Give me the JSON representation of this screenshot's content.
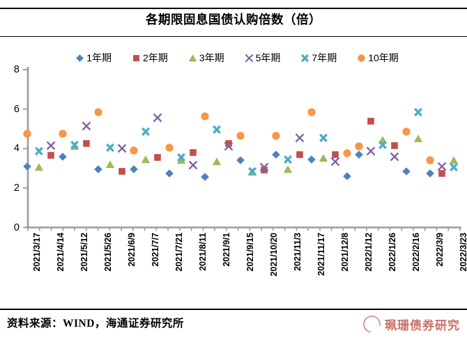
{
  "chart_data": {
    "type": "scatter",
    "title": "各期限固息国债认购倍数（倍）",
    "legend_position": "top",
    "grid": false,
    "x_axis": {
      "labels": [
        "2021/3/17",
        "2021/4/14",
        "2021/5/12",
        "2021/5/26",
        "2021/6/9",
        "2021/7/7",
        "2021/7/21",
        "2021/8/11",
        "2021/9/1",
        "2021/9/15",
        "2021/10/20",
        "2021/11/3",
        "2021/11/17",
        "2021/12/8",
        "2022/1/12",
        "2022/1/26",
        "2022/2/16",
        "2022/3/9",
        "2022/3/23"
      ],
      "total_slots": 37,
      "note_slots": "data points sit on 37 half-interval slots; axis labels mark odd slots 1,3,...,37"
    },
    "y_axis": {
      "min": 0,
      "max": 8,
      "tick_labels": [
        "0",
        "2",
        "4",
        "6",
        "8"
      ]
    },
    "series": [
      {
        "name": "1年期",
        "marker": "diamond",
        "color": "#4F81BD",
        "points": [
          [
            1,
            3.1
          ],
          [
            4,
            3.6
          ],
          [
            7,
            2.95
          ],
          [
            10,
            2.95
          ],
          [
            13,
            2.75
          ],
          [
            16,
            2.55
          ],
          [
            19,
            3.4
          ],
          [
            22,
            3.7
          ],
          [
            25,
            3.45
          ],
          [
            28,
            2.6
          ],
          [
            29,
            3.7
          ],
          [
            33,
            2.85
          ],
          [
            35,
            2.75
          ]
        ]
      },
      {
        "name": "2年期",
        "marker": "square",
        "color": "#C0504D",
        "points": [
          [
            3,
            3.65
          ],
          [
            6,
            4.25
          ],
          [
            9,
            2.85
          ],
          [
            12,
            3.55
          ],
          [
            15,
            3.8
          ],
          [
            18,
            4.25
          ],
          [
            21,
            2.9
          ],
          [
            24,
            3.7
          ],
          [
            27,
            3.7
          ],
          [
            30,
            5.4
          ],
          [
            32,
            4.15
          ],
          [
            36,
            2.75
          ]
        ]
      },
      {
        "name": "3年期",
        "marker": "triangle",
        "color": "#9BBB59",
        "points": [
          [
            2,
            3.05
          ],
          [
            5,
            4.1
          ],
          [
            8,
            3.2
          ],
          [
            11,
            3.45
          ],
          [
            14,
            3.4
          ],
          [
            17,
            3.35
          ],
          [
            20,
            2.8
          ],
          [
            23,
            2.95
          ],
          [
            26,
            3.5
          ],
          [
            31,
            4.45
          ],
          [
            34,
            4.5
          ],
          [
            37,
            3.4
          ]
        ]
      },
      {
        "name": "5年期",
        "marker": "x-thin",
        "color": "#8064A2",
        "points": [
          [
            3,
            4.15
          ],
          [
            6,
            5.15
          ],
          [
            9,
            4.0
          ],
          [
            12,
            5.55
          ],
          [
            15,
            3.15
          ],
          [
            18,
            4.1
          ],
          [
            21,
            3.05
          ],
          [
            24,
            4.55
          ],
          [
            27,
            3.35
          ],
          [
            30,
            3.85
          ],
          [
            32,
            3.6
          ],
          [
            36,
            3.1
          ]
        ]
      },
      {
        "name": "7年期",
        "marker": "x-bold",
        "color": "#4BACC6",
        "points": [
          [
            2,
            3.85
          ],
          [
            5,
            4.2
          ],
          [
            8,
            4.05
          ],
          [
            11,
            4.85
          ],
          [
            14,
            3.55
          ],
          [
            17,
            4.95
          ],
          [
            20,
            2.85
          ],
          [
            23,
            3.45
          ],
          [
            26,
            4.55
          ],
          [
            31,
            4.2
          ],
          [
            34,
            5.85
          ],
          [
            37,
            3.05
          ]
        ]
      },
      {
        "name": "10年期",
        "marker": "circle",
        "color": "#F79646",
        "points": [
          [
            1,
            4.75
          ],
          [
            4,
            4.75
          ],
          [
            7,
            5.85
          ],
          [
            10,
            3.9
          ],
          [
            13,
            4.05
          ],
          [
            16,
            5.65
          ],
          [
            19,
            4.65
          ],
          [
            22,
            4.65
          ],
          [
            25,
            5.85
          ],
          [
            28,
            3.75
          ],
          [
            29,
            4.1
          ],
          [
            33,
            4.85
          ],
          [
            35,
            3.4
          ]
        ]
      }
    ]
  },
  "footer": {
    "source_note": "资料来源：WIND，海通证券研究所"
  },
  "watermark": {
    "text": "珮珊债券研究"
  }
}
